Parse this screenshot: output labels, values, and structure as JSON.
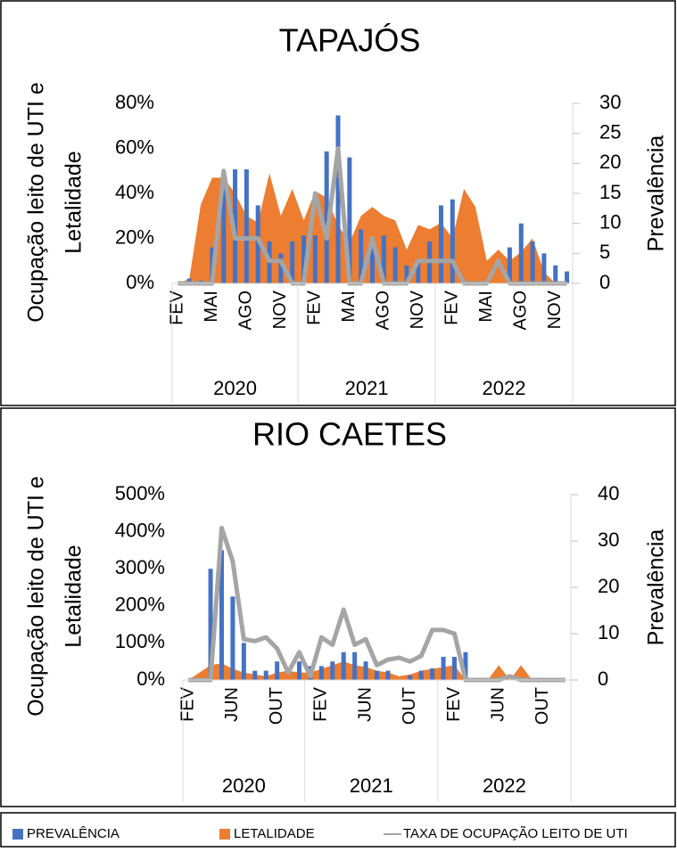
{
  "chart_data": [
    {
      "type": "combo",
      "title": "TAPAJÓS",
      "ylabel": [
        "Ocupação leito de UTI e",
        "Letalidade"
      ],
      "y2label": "Prevalência",
      "categories": [
        "FEV",
        null,
        null,
        "MAI",
        null,
        null,
        "AGO",
        null,
        null,
        "NOV",
        null,
        null,
        "FEV",
        null,
        null,
        "MAI",
        null,
        null,
        "AGO",
        null,
        null,
        "NOV",
        null,
        null,
        "FEV",
        null,
        null,
        "MAI",
        null,
        null,
        "AGO",
        null,
        null,
        "NOV",
        null
      ],
      "x_groups": [
        "2020",
        "2021",
        "2022"
      ],
      "ylim": [
        0,
        80
      ],
      "yticks": [
        {
          "value": 0,
          "label": "0%"
        },
        {
          "value": 20,
          "label": "20%"
        },
        {
          "value": 40,
          "label": "40%"
        },
        {
          "value": 60,
          "label": "60%"
        },
        {
          "value": 80,
          "label": "80%"
        }
      ],
      "y2lim": [
        0,
        30
      ],
      "y2ticks": [
        0,
        5,
        10,
        15,
        20,
        25,
        30
      ],
      "series": [
        {
          "name": "PREVALÊNCIA",
          "kind": "bar",
          "axis": "y2",
          "color": "#4472c4",
          "values": [
            0,
            0.8,
            0.5,
            6,
            16,
            19,
            19,
            13,
            7,
            5,
            7,
            8,
            8,
            22,
            28,
            21,
            9,
            7.5,
            8,
            6,
            3,
            4,
            7,
            13,
            14,
            0,
            0,
            0,
            0,
            6,
            10,
            7,
            5,
            3,
            2
          ]
        },
        {
          "name": "LETALIDADE",
          "kind": "area",
          "color": "#ed7d31",
          "values": [
            0,
            2,
            35,
            47,
            47,
            40,
            30,
            27,
            49,
            30,
            42,
            28,
            41,
            38,
            26,
            18,
            30,
            34,
            30,
            28,
            15,
            26,
            24,
            27,
            20,
            42,
            34,
            10,
            15,
            10,
            14,
            20,
            5,
            0,
            0
          ]
        },
        {
          "name": "TAXA DE OCUPAÇÃO LEITO DE UTI",
          "kind": "line",
          "color": "#a5a5a5",
          "values": [
            0,
            0,
            0,
            0,
            50,
            20,
            20,
            20,
            10,
            10,
            0,
            0,
            40,
            20,
            60,
            0,
            0,
            20,
            0,
            0,
            0,
            10,
            10,
            10,
            10,
            0,
            0,
            0,
            10,
            0,
            0,
            0,
            0,
            0,
            0
          ]
        }
      ]
    },
    {
      "type": "combo",
      "title": "RIO CAETES",
      "ylabel": [
        "Ocupação leito de UTI e",
        "Letalidade"
      ],
      "y2label": "Prevalência",
      "categories": [
        "FEV",
        null,
        null,
        null,
        "JUN",
        null,
        null,
        null,
        "OUT",
        null,
        null,
        null,
        "FEV",
        null,
        null,
        null,
        "JUN",
        null,
        null,
        null,
        "OUT",
        null,
        null,
        null,
        "FEV",
        null,
        null,
        null,
        "JUN",
        null,
        null,
        null,
        "OUT",
        null,
        null
      ],
      "x_groups": [
        "2020",
        "2021",
        "2022"
      ],
      "ylim": [
        0,
        500
      ],
      "yticks": [
        {
          "value": 0,
          "label": "0%"
        },
        {
          "value": 100,
          "label": "100%"
        },
        {
          "value": 200,
          "label": "200%"
        },
        {
          "value": 300,
          "label": "300%"
        },
        {
          "value": 400,
          "label": "400%"
        },
        {
          "value": 500,
          "label": "500%"
        }
      ],
      "y2lim": [
        0,
        40
      ],
      "y2ticks": [
        0,
        10,
        20,
        30,
        40
      ],
      "series": [
        {
          "kind": "bar",
          "axis": "y2",
          "color": "#4472c4",
          "values": [
            0,
            0,
            24,
            28,
            18,
            8,
            2,
            2,
            4,
            0,
            4,
            3,
            3,
            4,
            6,
            6,
            4,
            2,
            2,
            0,
            1,
            2,
            2.5,
            5,
            5,
            6,
            0,
            0,
            0,
            0,
            0,
            0,
            0,
            0,
            0
          ]
        },
        {
          "kind": "area",
          "color": "#ed7d31",
          "values": [
            0,
            20,
            40,
            45,
            30,
            20,
            15,
            10,
            20,
            25,
            20,
            20,
            30,
            40,
            50,
            40,
            35,
            25,
            20,
            10,
            15,
            25,
            30,
            35,
            40,
            0,
            0,
            0,
            40,
            0,
            40,
            0,
            0,
            0,
            0
          ]
        },
        {
          "kind": "line",
          "color": "#a5a5a5",
          "values": [
            0,
            0,
            0,
            410,
            320,
            110,
            105,
            115,
            85,
            20,
            75,
            10,
            115,
            95,
            190,
            95,
            110,
            40,
            55,
            60,
            50,
            65,
            135,
            135,
            125,
            0,
            0,
            0,
            0,
            10,
            0,
            0,
            0,
            0,
            0
          ]
        }
      ]
    }
  ]
}
